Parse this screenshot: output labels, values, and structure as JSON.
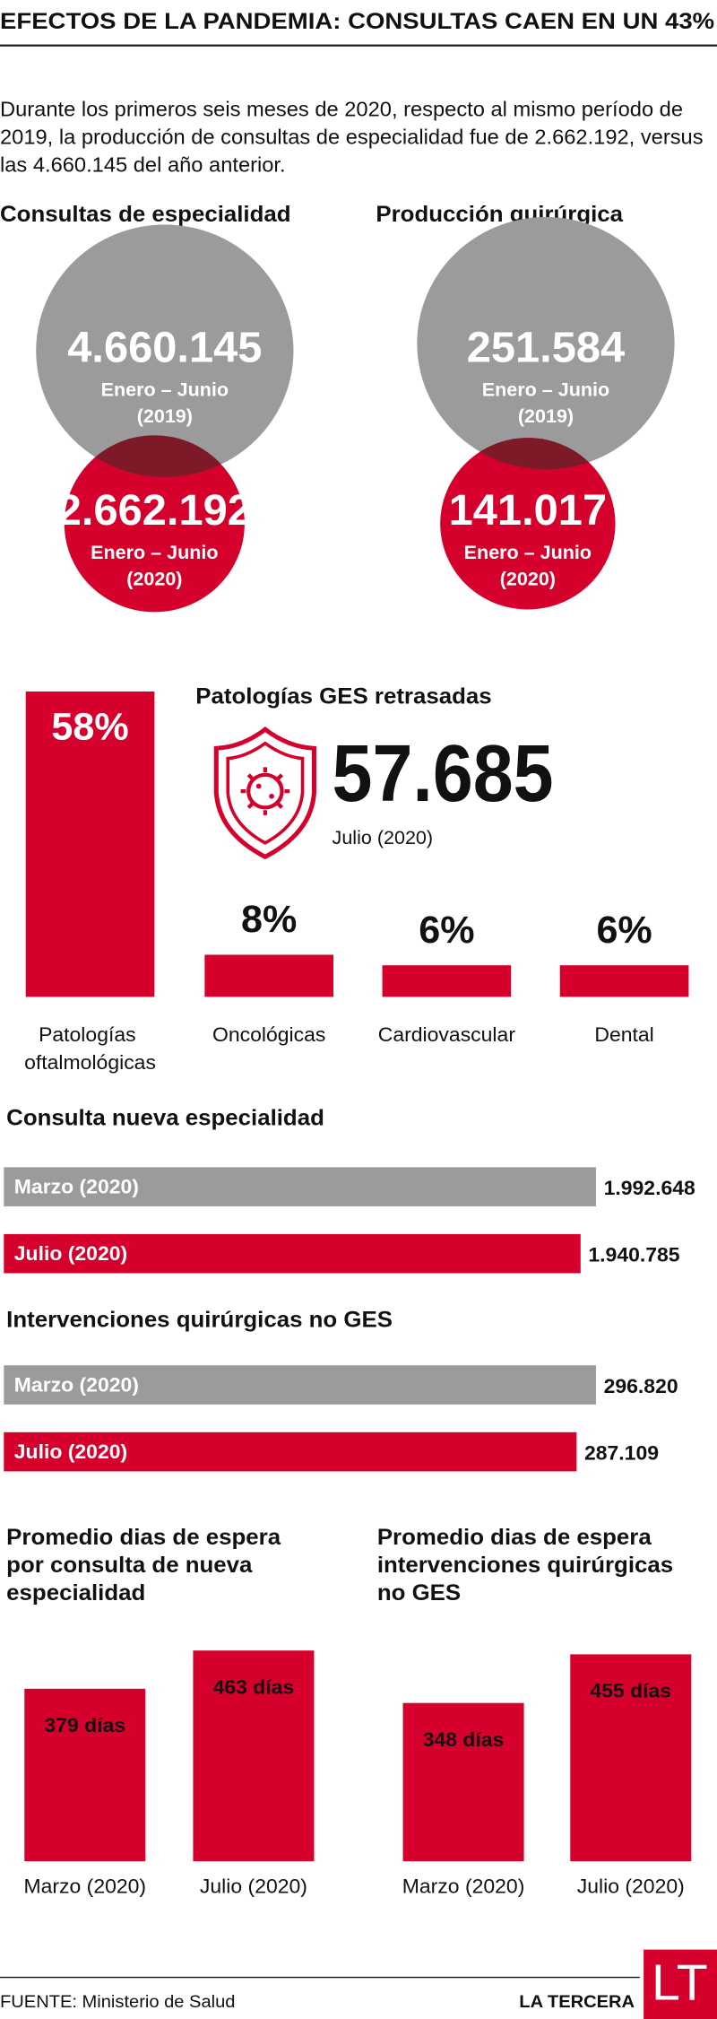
{
  "title": "EFECTOS DE LA PANDEMIA: CONSULTAS CAEN EN UN 43%",
  "intro": "Durante los primeros seis meses de 2020, respecto al mismo período de 2019, la producción de consultas de especialidad fue de 2.662.192, versus las 4.660.145 del año anterior.",
  "circles": [
    {
      "title": "Consultas de especialidad",
      "items": [
        {
          "number": "4.660.145",
          "label": "Enero – Junio",
          "period": "(2019)",
          "color": "#9b9b9b"
        },
        {
          "number": "2.662.192",
          "label": "Enero – Junio",
          "period": "(2020)",
          "color": "#d5002c"
        }
      ]
    },
    {
      "title": "Producción quirúrgica",
      "items": [
        {
          "number": "251.584",
          "label": "Enero – Junio",
          "period": "(2019)",
          "color": "#9b9b9b"
        },
        {
          "number": "141.017",
          "label": "Enero – Junio",
          "period": "(2020)",
          "color": "#d5002c"
        }
      ]
    }
  ],
  "ges": {
    "title": "Patologías GES retrasadas",
    "number": "57.685",
    "period": "Julio (2020)"
  },
  "chart_data": [
    {
      "type": "bar",
      "categories": [
        "Patologías oftalmológicas",
        "Oncológicas",
        "Cardiovascular",
        "Dental"
      ],
      "values": [
        58,
        8,
        6,
        6
      ],
      "value_labels": [
        "58%",
        "8%",
        "6%",
        "6%"
      ],
      "color": "#d5002c"
    },
    {
      "type": "barh",
      "title": "Consulta nueva especialidad",
      "categories": [
        "Marzo (2020)",
        "Julio (2020)"
      ],
      "values": [
        1992648,
        1940785
      ],
      "value_labels": [
        "1.992.648",
        "1.940.785"
      ],
      "colors": [
        "#9b9b9b",
        "#d5002c"
      ]
    },
    {
      "type": "barh",
      "title": "Intervenciones quirúrgicas no GES",
      "categories": [
        "Marzo (2020)",
        "Julio (2020)"
      ],
      "values": [
        296820,
        287109
      ],
      "value_labels": [
        "296.820",
        "287.109"
      ],
      "colors": [
        "#9b9b9b",
        "#d5002c"
      ]
    },
    {
      "type": "bar",
      "title": "Promedio dias de espera por consulta de nueva especialidad",
      "categories": [
        "Marzo (2020)",
        "Julio (2020)"
      ],
      "values": [
        379,
        463
      ],
      "value_labels": [
        "379 días",
        "463 días"
      ],
      "color": "#d5002c"
    },
    {
      "type": "bar",
      "title": "Promedio dias de espera intervenciones quirúrgicas no GES",
      "categories": [
        "Marzo (2020)",
        "Julio (2020)"
      ],
      "values": [
        348,
        455
      ],
      "value_labels": [
        "348 días",
        "455 días"
      ],
      "color": "#d5002c"
    }
  ],
  "source": "FUENTE: Ministerio de Salud",
  "brand": "LA TERCERA",
  "logo": "LT"
}
